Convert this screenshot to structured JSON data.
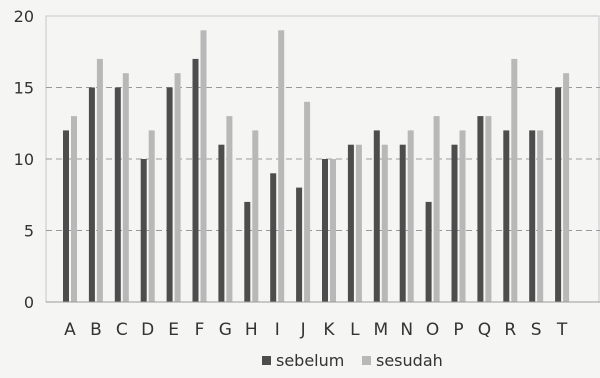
{
  "chart_data": {
    "type": "bar",
    "categories": [
      "A",
      "B",
      "C",
      "D",
      "E",
      "F",
      "G",
      "H",
      "I",
      "J",
      "K",
      "L",
      "M",
      "N",
      "O",
      "P",
      "Q",
      "R",
      "S",
      "T"
    ],
    "series": [
      {
        "name": "sebelum",
        "color": "#4d4d4d",
        "values": [
          12,
          15,
          15,
          10,
          15,
          17,
          11,
          7,
          9,
          8,
          10,
          11,
          12,
          11,
          7,
          11,
          13,
          12,
          12,
          15
        ]
      },
      {
        "name": "sesudah",
        "color": "#b8b8b8",
        "values": [
          13,
          17,
          16,
          12,
          16,
          19,
          13,
          12,
          19,
          14,
          10,
          11,
          11,
          12,
          13,
          12,
          13,
          17,
          12,
          16
        ]
      }
    ],
    "yticks": [
      0,
      5,
      10,
      15,
      20
    ],
    "ylim": [
      0,
      20
    ],
    "grid": "horizontal-dashed",
    "legend_position": "bottom"
  }
}
